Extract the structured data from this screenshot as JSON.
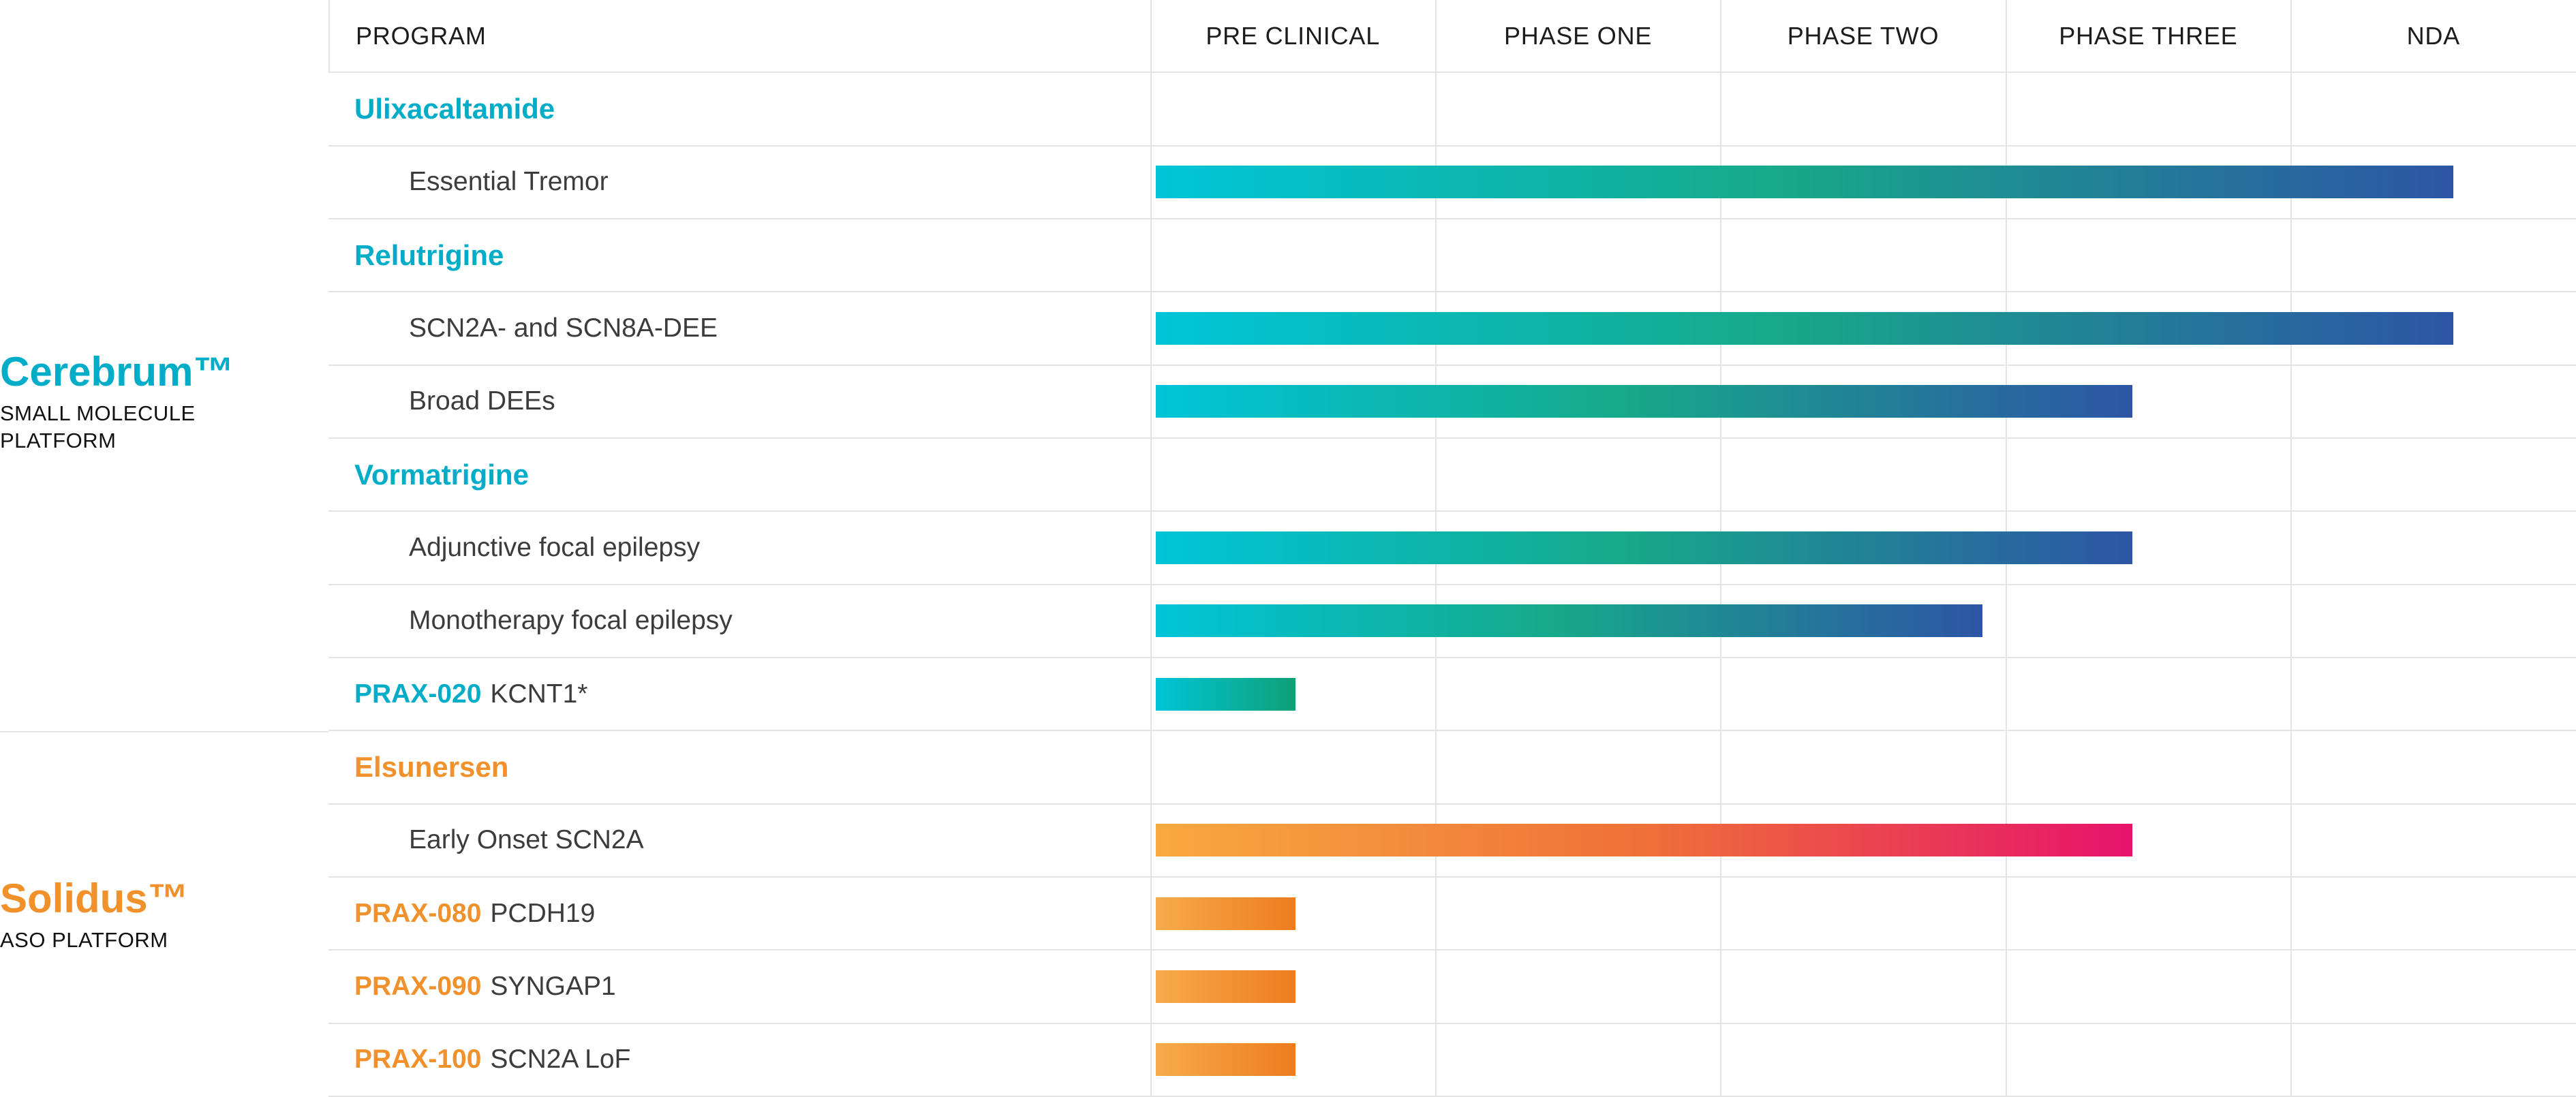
{
  "columns": [
    "PROGRAM",
    "PRE CLINICAL",
    "PHASE ONE",
    "PHASE TWO",
    "PHASE THREE",
    "NDA"
  ],
  "platforms": [
    {
      "name": "Cerebrum™",
      "subtitle": "SMALL MOLECULE PLATFORM",
      "color": "#00ADC9"
    },
    {
      "name": "Solidus™",
      "subtitle": "ASO PLATFORM",
      "color": "#F0912C"
    }
  ],
  "rows": [
    {
      "type": "group",
      "label": "Ulixacaltamide"
    },
    {
      "type": "program",
      "label": "Essential Tremor",
      "progress": 0.91
    },
    {
      "type": "group",
      "label": "Relutrigine"
    },
    {
      "type": "program",
      "label": "SCN2A- and SCN8A-DEE",
      "progress": 0.91
    },
    {
      "type": "program",
      "label": "Broad DEEs",
      "progress": 0.685
    },
    {
      "type": "group",
      "label": "Vormatrigine"
    },
    {
      "type": "program",
      "label": "Adjunctive focal epilepsy",
      "progress": 0.685
    },
    {
      "type": "program",
      "label": "Monotherapy focal epilepsy",
      "progress": 0.58
    },
    {
      "type": "prax",
      "prefix": "PRAX-020",
      "suffix": "KCNT1*",
      "progress": 0.098
    },
    {
      "type": "group",
      "label": "Elsunersen"
    },
    {
      "type": "program",
      "label": "Early Onset SCN2A",
      "progress": 0.685
    },
    {
      "type": "prax",
      "prefix": "PRAX-080",
      "suffix": "PCDH19",
      "progress": 0.098
    },
    {
      "type": "prax",
      "prefix": "PRAX-090",
      "suffix": "SYNGAP1",
      "progress": 0.098
    },
    {
      "type": "prax",
      "prefix": "PRAX-100",
      "suffix": "SCN2A LoF",
      "progress": 0.098
    }
  ],
  "gradients": {
    "cerebrum_long": [
      "#00C5D8",
      "#17A98A 48%",
      "#2D55A5"
    ],
    "cerebrum_short": [
      "#00C5D8",
      "#0FA077"
    ],
    "solidus_long": [
      "#F8A940",
      "#EF7038 50%",
      "#E6136B"
    ],
    "solidus_short": [
      "#F7AB4C",
      "#ED7C1F"
    ]
  },
  "colors": {
    "cerebrum_accent": "#00ADC9",
    "solidus_accent": "#F0912C",
    "body_text": "#3C3C3C",
    "header_text": "#1C1C1C",
    "grid_line": "#E4E4E4"
  },
  "chart_data": {
    "type": "bar",
    "orientation": "horizontal",
    "x_axis_phases": [
      "PRE CLINICAL",
      "PHASE ONE",
      "PHASE TWO",
      "PHASE THREE",
      "NDA"
    ],
    "xlim": [
      0,
      5
    ],
    "grid": true,
    "series": [
      {
        "platform": "Cerebrum™ SMALL MOLECULE PLATFORM",
        "program": "Ulixacaltamide",
        "indication": "Essential Tremor",
        "phase_progress": 4.55
      },
      {
        "platform": "Cerebrum™ SMALL MOLECULE PLATFORM",
        "program": "Relutrigine",
        "indication": "SCN2A- and SCN8A-DEE",
        "phase_progress": 4.55
      },
      {
        "platform": "Cerebrum™ SMALL MOLECULE PLATFORM",
        "program": "Relutrigine",
        "indication": "Broad DEEs",
        "phase_progress": 3.43
      },
      {
        "platform": "Cerebrum™ SMALL MOLECULE PLATFORM",
        "program": "Vormatrigine",
        "indication": "Adjunctive focal epilepsy",
        "phase_progress": 3.43
      },
      {
        "platform": "Cerebrum™ SMALL MOLECULE PLATFORM",
        "program": "Vormatrigine",
        "indication": "Monotherapy focal epilepsy",
        "phase_progress": 2.9
      },
      {
        "platform": "Cerebrum™ SMALL MOLECULE PLATFORM",
        "program": "PRAX-020",
        "indication": "KCNT1*",
        "phase_progress": 0.49
      },
      {
        "platform": "Solidus™ ASO PLATFORM",
        "program": "Elsunersen",
        "indication": "Early Onset SCN2A",
        "phase_progress": 3.43
      },
      {
        "platform": "Solidus™ ASO PLATFORM",
        "program": "PRAX-080",
        "indication": "PCDH19",
        "phase_progress": 0.49
      },
      {
        "platform": "Solidus™ ASO PLATFORM",
        "program": "PRAX-090",
        "indication": "SYNGAP1",
        "phase_progress": 0.49
      },
      {
        "platform": "Solidus™ ASO PLATFORM",
        "program": "PRAX-100",
        "indication": "SCN2A LoF",
        "phase_progress": 0.49
      }
    ]
  }
}
